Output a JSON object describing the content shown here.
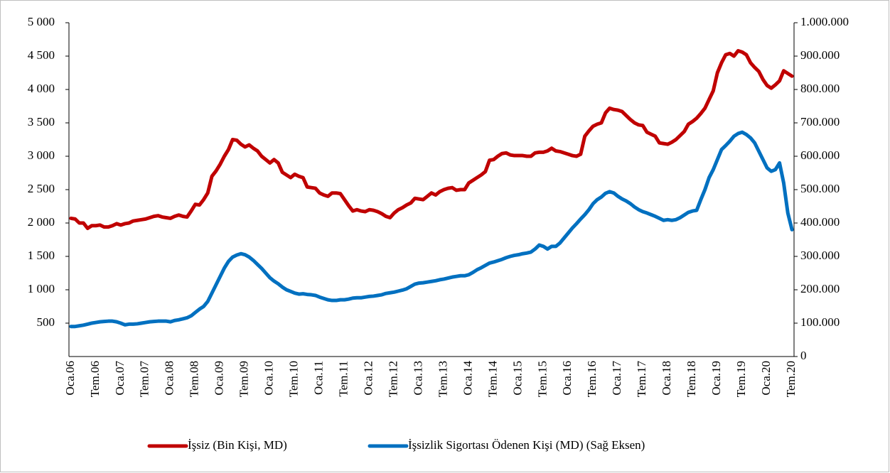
{
  "chart_data": {
    "type": "line",
    "categories": [
      "Oca.06",
      null,
      null,
      null,
      null,
      null,
      "Tem.06",
      null,
      null,
      null,
      null,
      null,
      "Oca.07",
      null,
      null,
      null,
      null,
      null,
      "Tem.07",
      null,
      null,
      null,
      null,
      null,
      "Oca.08",
      null,
      null,
      null,
      null,
      null,
      "Tem.08",
      null,
      null,
      null,
      null,
      null,
      "Oca.09",
      null,
      null,
      null,
      null,
      null,
      "Tem.09",
      null,
      null,
      null,
      null,
      null,
      "Oca.10",
      null,
      null,
      null,
      null,
      null,
      "Tem.10",
      null,
      null,
      null,
      null,
      null,
      "Oca.11",
      null,
      null,
      null,
      null,
      null,
      "Tem.11",
      null,
      null,
      null,
      null,
      null,
      "Oca.12",
      null,
      null,
      null,
      null,
      null,
      "Tem.12",
      null,
      null,
      null,
      null,
      null,
      "Oca.13",
      null,
      null,
      null,
      null,
      null,
      "Tem.13",
      null,
      null,
      null,
      null,
      null,
      "Oca.14",
      null,
      null,
      null,
      null,
      null,
      "Tem.14",
      null,
      null,
      null,
      null,
      null,
      "Oca.15",
      null,
      null,
      null,
      null,
      null,
      "Tem.15",
      null,
      null,
      null,
      null,
      null,
      "Oca.16",
      null,
      null,
      null,
      null,
      null,
      "Tem.16",
      null,
      null,
      null,
      null,
      null,
      "Oca.17",
      null,
      null,
      null,
      null,
      null,
      "Tem.17",
      null,
      null,
      null,
      null,
      null,
      "Oca.18",
      null,
      null,
      null,
      null,
      null,
      "Tem.18",
      null,
      null,
      null,
      null,
      null,
      "Oca.19",
      null,
      null,
      null,
      null,
      null,
      "Tem.19",
      null,
      null,
      null,
      null,
      null,
      "Oca.20",
      null,
      null,
      null,
      null,
      null,
      "Tem.20"
    ],
    "series": [
      {
        "name": "İşsiz (Bin Kişi, MD)",
        "color": "#c00000",
        "values": [
          2070,
          2060,
          2000,
          2000,
          1920,
          1960,
          1960,
          1970,
          1940,
          1940,
          1960,
          1990,
          1970,
          1990,
          2000,
          2030,
          2040,
          2050,
          2060,
          2080,
          2100,
          2110,
          2090,
          2080,
          2070,
          2100,
          2120,
          2100,
          2090,
          2180,
          2280,
          2270,
          2350,
          2450,
          2700,
          2780,
          2880,
          3000,
          3100,
          3250,
          3240,
          3180,
          3140,
          3170,
          3120,
          3080,
          3000,
          2950,
          2900,
          2950,
          2900,
          2760,
          2720,
          2680,
          2730,
          2700,
          2680,
          2540,
          2530,
          2520,
          2450,
          2420,
          2400,
          2450,
          2450,
          2440,
          2350,
          2260,
          2180,
          2200,
          2180,
          2170,
          2200,
          2190,
          2170,
          2140,
          2100,
          2080,
          2150,
          2200,
          2230,
          2270,
          2300,
          2370,
          2360,
          2350,
          2400,
          2450,
          2420,
          2470,
          2500,
          2520,
          2530,
          2490,
          2500,
          2500,
          2600,
          2640,
          2680,
          2720,
          2770,
          2940,
          2950,
          3000,
          3040,
          3050,
          3020,
          3010,
          3010,
          3010,
          3000,
          3000,
          3050,
          3060,
          3060,
          3080,
          3120,
          3080,
          3070,
          3050,
          3030,
          3010,
          3000,
          3030,
          3300,
          3380,
          3450,
          3480,
          3500,
          3650,
          3720,
          3700,
          3690,
          3670,
          3610,
          3550,
          3500,
          3470,
          3460,
          3360,
          3330,
          3300,
          3200,
          3190,
          3180,
          3210,
          3250,
          3310,
          3370,
          3480,
          3520,
          3570,
          3640,
          3720,
          3850,
          3980,
          4250,
          4400,
          4520,
          4540,
          4500,
          4580,
          4560,
          4520,
          4400,
          4330,
          4270,
          4150,
          4060,
          4020,
          4070,
          4130,
          4280,
          4240,
          4200
        ]
      },
      {
        "name": "İşsizlik Sigortası Ödenen Kişi (MD) (Sağ Eksen)",
        "color": "#0070c0",
        "axis": "y2",
        "values": [
          90000,
          90000,
          92000,
          94000,
          97000,
          100000,
          102000,
          104000,
          105000,
          106000,
          106000,
          104000,
          100000,
          95000,
          97000,
          97000,
          98000,
          100000,
          102000,
          104000,
          105000,
          106000,
          106000,
          106000,
          104000,
          108000,
          110000,
          113000,
          116000,
          122000,
          132000,
          142000,
          150000,
          165000,
          190000,
          215000,
          240000,
          265000,
          285000,
          298000,
          304000,
          308000,
          305000,
          298000,
          288000,
          276000,
          264000,
          250000,
          236000,
          226000,
          218000,
          208000,
          200000,
          195000,
          190000,
          187000,
          188000,
          186000,
          185000,
          183000,
          178000,
          174000,
          170000,
          168000,
          168000,
          170000,
          170000,
          172000,
          175000,
          176000,
          176000,
          178000,
          180000,
          181000,
          183000,
          185000,
          189000,
          191000,
          193000,
          196000,
          199000,
          203000,
          210000,
          217000,
          220000,
          221000,
          223000,
          225000,
          227000,
          230000,
          232000,
          235000,
          238000,
          240000,
          242000,
          242000,
          245000,
          252000,
          260000,
          266000,
          273000,
          280000,
          283000,
          287000,
          291000,
          296000,
          300000,
          303000,
          305000,
          308000,
          310000,
          313000,
          322000,
          334000,
          330000,
          322000,
          330000,
          330000,
          340000,
          355000,
          370000,
          385000,
          398000,
          412000,
          425000,
          440000,
          458000,
          470000,
          478000,
          489000,
          494000,
          490000,
          480000,
          472000,
          466000,
          458000,
          448000,
          440000,
          434000,
          430000,
          425000,
          420000,
          414000,
          408000,
          410000,
          408000,
          410000,
          416000,
          424000,
          432000,
          436000,
          438000,
          470000,
          500000,
          536000,
          560000,
          590000,
          620000,
          632000,
          645000,
          660000,
          668000,
          672000,
          665000,
          655000,
          640000,
          615000,
          590000,
          565000,
          555000,
          560000,
          580000,
          520000,
          430000,
          380000
        ]
      }
    ],
    "ylim": [
      0,
      5000
    ],
    "yticks": [
      500,
      {
        "value": 1000,
        "label": "1 000"
      },
      {
        "value": 1500,
        "label": "1 500"
      },
      {
        "value": 2000,
        "label": "2 000"
      },
      {
        "value": 2500,
        "label": "2 500"
      },
      {
        "value": 3000,
        "label": "3 000"
      },
      {
        "value": 3500,
        "label": "3 500"
      },
      {
        "value": 4000,
        "label": "4 000"
      },
      {
        "value": 4500,
        "label": "4 500"
      },
      {
        "value": 5000,
        "label": "5 000"
      }
    ],
    "y2lim": [
      0,
      1000000
    ],
    "y2ticks": [
      0,
      {
        "value": 100000,
        "label": "100.000"
      },
      {
        "value": 200000,
        "label": "200.000"
      },
      {
        "value": 300000,
        "label": "300.000"
      },
      {
        "value": 400000,
        "label": "400.000"
      },
      {
        "value": 500000,
        "label": "500.000"
      },
      {
        "value": 600000,
        "label": "600.000"
      },
      {
        "value": 700000,
        "label": "700.000"
      },
      {
        "value": 800000,
        "label": "800.000"
      },
      {
        "value": 900000,
        "label": "900.000"
      },
      {
        "value": 1000000,
        "label": "1.000.000"
      }
    ],
    "grid": false,
    "legend": "bottom"
  }
}
